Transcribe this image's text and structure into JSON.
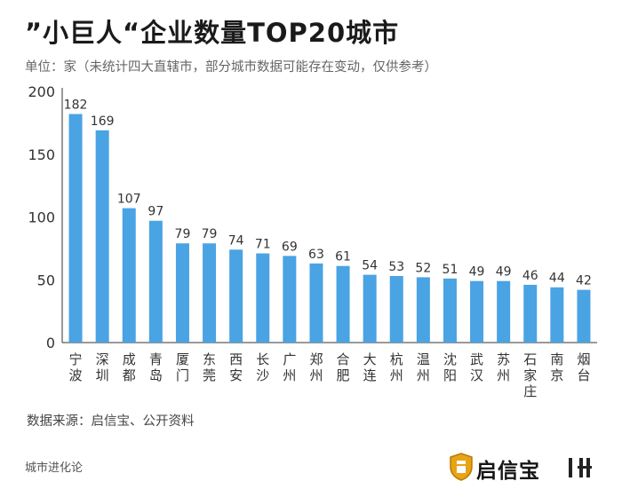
{
  "header": {
    "title": "”小巨人“企业数量TOP20城市",
    "subtitle": "单位：家（未统计四大直辖市，部分城市数据可能存在变动，仅供参考）"
  },
  "footer": {
    "source": "数据来源：启信宝、公开资料",
    "brand": "城市进化论",
    "logo_text": "启信宝"
  },
  "colors": {
    "bar": "#4aa3e3",
    "axis": "#333333",
    "text": "#333333"
  },
  "chart_data": {
    "type": "bar",
    "title": "”小巨人“企业数量TOP20城市",
    "xlabel": "",
    "ylabel": "",
    "ylim": [
      0,
      200
    ],
    "yticks": [
      0,
      50,
      100,
      150,
      200
    ],
    "categories": [
      "宁波",
      "深圳",
      "成都",
      "青岛",
      "厦门",
      "东莞",
      "西安",
      "长沙",
      "广州",
      "郑州",
      "合肥",
      "大连",
      "杭州",
      "温州",
      "沈阳",
      "武汉",
      "苏州",
      "石家庄",
      "南京",
      "烟台"
    ],
    "values": [
      182,
      169,
      107,
      97,
      79,
      79,
      74,
      71,
      69,
      63,
      61,
      54,
      53,
      52,
      51,
      49,
      49,
      46,
      44,
      42
    ]
  }
}
